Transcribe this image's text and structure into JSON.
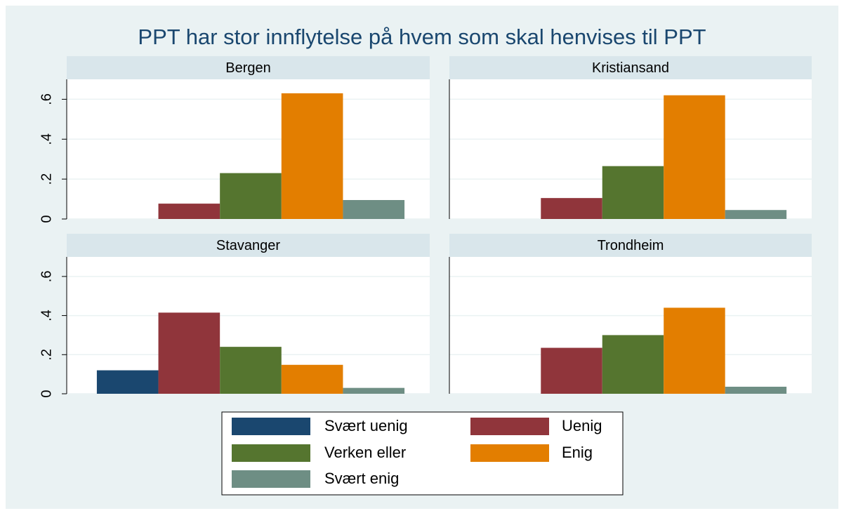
{
  "title": "PPT har stor innflytelse på hvem som skal henvises til PPT",
  "ylim": [
    0,
    0.7
  ],
  "yticks": [
    0,
    {
      "value": 0.2,
      "label": ".2"
    },
    {
      "value": 0.4,
      "label": ".4"
    },
    {
      "value": 0.6,
      "label": ".6"
    }
  ],
  "legend": [
    {
      "name": "Svært uenig",
      "color": "#1a476f"
    },
    {
      "name": "Uenig",
      "color": "#90353b"
    },
    {
      "name": "Verken eller",
      "color": "#55752f"
    },
    {
      "name": "Enig",
      "color": "#e37e00"
    },
    {
      "name": "Svært enig",
      "color": "#6e8e84"
    }
  ],
  "chart_data": [
    {
      "type": "bar",
      "title": "Bergen",
      "values": [
        0,
        0.077,
        0.23,
        0.63,
        0.095
      ]
    },
    {
      "type": "bar",
      "title": "Kristiansand",
      "values": [
        0,
        0.105,
        0.265,
        0.62,
        0.045
      ]
    },
    {
      "type": "bar",
      "title": "Stavanger",
      "values": [
        0.12,
        0.415,
        0.24,
        0.148,
        0.03
      ]
    },
    {
      "type": "bar",
      "title": "Trondheim",
      "values": [
        0,
        0.235,
        0.3,
        0.44,
        0.036
      ]
    }
  ]
}
